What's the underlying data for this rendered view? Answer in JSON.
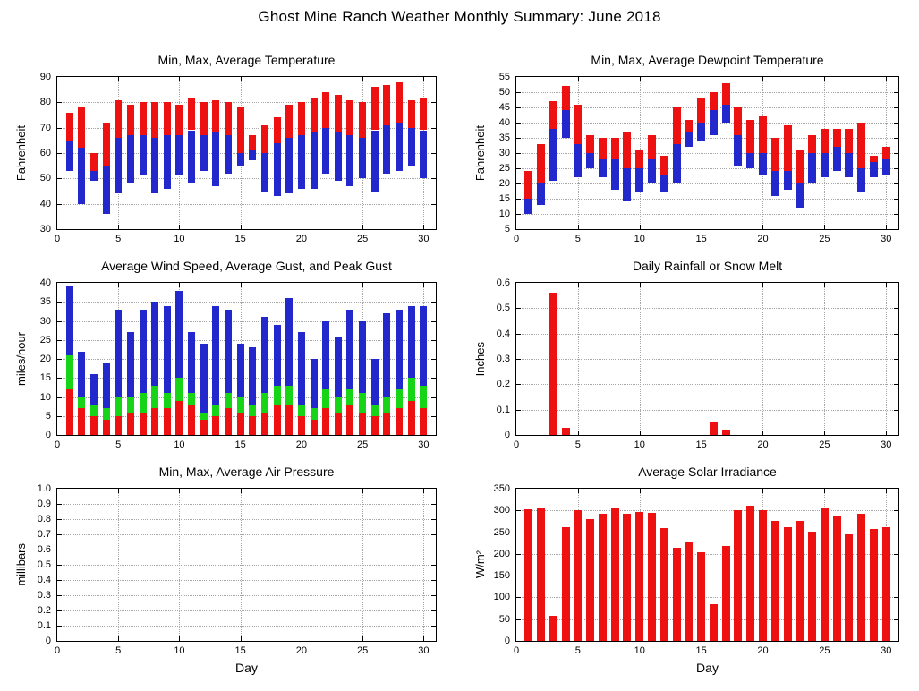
{
  "title": "Ghost Mine Ranch Weather Monthly Summary: June 2018",
  "colors": {
    "red": "#ee1111",
    "green": "#17d417",
    "blue": "#2328cc",
    "grid": "#a6a6a6"
  },
  "chart_data": [
    {
      "name": "temperature",
      "type": "range",
      "title": "Min, Max, Average Temperature",
      "ylabel": "Fahrenheit",
      "xlabel": "",
      "ymin": 30,
      "ymax": 90,
      "yticks": [
        30,
        40,
        50,
        60,
        70,
        80,
        90
      ],
      "ytick_labels": [
        "30",
        "40",
        "50",
        "60",
        "70",
        "80",
        "90"
      ],
      "xmin": 0,
      "xmax": 31,
      "xticks": [
        0,
        5,
        10,
        15,
        20,
        25,
        30
      ],
      "series": {
        "min": [
          53,
          40,
          49,
          36,
          44,
          48,
          51,
          44,
          46,
          51,
          48,
          53,
          47,
          52,
          55,
          57,
          45,
          43,
          44,
          46,
          46,
          52,
          49,
          47,
          50,
          45,
          52,
          53,
          55,
          50
        ],
        "avg": [
          65,
          62,
          53,
          55,
          66,
          67,
          67,
          66,
          67,
          67,
          69,
          67,
          68,
          67,
          60,
          61,
          60,
          64,
          66,
          67,
          68,
          70,
          68,
          67,
          66,
          69,
          71,
          72,
          70,
          69
        ],
        "max": [
          76,
          78,
          60,
          72,
          81,
          79,
          80,
          80,
          80,
          79,
          82,
          80,
          81,
          80,
          78,
          67,
          71,
          74,
          79,
          80,
          82,
          84,
          83,
          81,
          80,
          86,
          87,
          88,
          81,
          82
        ]
      }
    },
    {
      "name": "dewpoint",
      "type": "range",
      "title": "Min, Max, Average Dewpoint Temperature",
      "ylabel": "Fahrenheit",
      "xlabel": "",
      "ymin": 5,
      "ymax": 55,
      "yticks": [
        5,
        10,
        15,
        20,
        25,
        30,
        35,
        40,
        45,
        50,
        55
      ],
      "ytick_labels": [
        "5",
        "10",
        "15",
        "20",
        "25",
        "30",
        "35",
        "40",
        "45",
        "50",
        "55"
      ],
      "xmin": 0,
      "xmax": 31,
      "xticks": [
        0,
        5,
        10,
        15,
        20,
        25,
        30
      ],
      "series": {
        "min": [
          10,
          13,
          21,
          35,
          22,
          25,
          22,
          18,
          14,
          17,
          20,
          17,
          20,
          32,
          34,
          36,
          40,
          26,
          25,
          23,
          16,
          18,
          12,
          20,
          22,
          24,
          22,
          17,
          22,
          23
        ],
        "avg": [
          15,
          20,
          38,
          44,
          33,
          30,
          28,
          28,
          25,
          25,
          28,
          23,
          33,
          37,
          40,
          44,
          46,
          36,
          30,
          30,
          24,
          24,
          20,
          30,
          30,
          32,
          30,
          25,
          27,
          28
        ],
        "max": [
          24,
          33,
          47,
          52,
          46,
          36,
          35,
          35,
          37,
          31,
          36,
          29,
          45,
          41,
          48,
          50,
          53,
          45,
          41,
          42,
          35,
          39,
          31,
          36,
          38,
          38,
          38,
          40,
          29,
          32
        ]
      }
    },
    {
      "name": "wind",
      "type": "overlay",
      "title": "Average Wind Speed, Average Gust, and Peak Gust",
      "ylabel": "miles/hour",
      "xlabel": "",
      "ymin": 0,
      "ymax": 40,
      "yticks": [
        0,
        5,
        10,
        15,
        20,
        25,
        30,
        35,
        40
      ],
      "ytick_labels": [
        "0",
        "5",
        "10",
        "15",
        "20",
        "25",
        "30",
        "35",
        "40"
      ],
      "xmin": 0,
      "xmax": 31,
      "xticks": [
        0,
        5,
        10,
        15,
        20,
        25,
        30
      ],
      "series": {
        "avg_speed": [
          12,
          7,
          5,
          4,
          5,
          6,
          6,
          7,
          7,
          9,
          8,
          4,
          5,
          7,
          6,
          5,
          6,
          8,
          8,
          5,
          4,
          7,
          6,
          8,
          6,
          5,
          6,
          7,
          9,
          7
        ],
        "avg_gust": [
          21,
          10,
          8,
          7,
          10,
          10,
          11,
          13,
          11,
          15,
          11,
          6,
          8,
          11,
          10,
          8,
          11,
          13,
          13,
          8,
          7,
          12,
          10,
          12,
          11,
          8,
          10,
          12,
          15,
          13
        ],
        "peak_gust": [
          39,
          22,
          16,
          19,
          33,
          27,
          33,
          35,
          34,
          38,
          27,
          24,
          34,
          33,
          24,
          23,
          31,
          29,
          36,
          27,
          20,
          30,
          26,
          33,
          30,
          20,
          32,
          33,
          34,
          34
        ]
      }
    },
    {
      "name": "rainfall",
      "type": "bar",
      "title": "Daily Rainfall or Snow Melt",
      "ylabel": "Inches",
      "xlabel": "",
      "ymin": 0,
      "ymax": 0.6,
      "yticks": [
        0,
        0.1,
        0.2,
        0.3,
        0.4,
        0.5,
        0.6
      ],
      "ytick_labels": [
        "0",
        "0.1",
        "0.2",
        "0.3",
        "0.4",
        "0.5",
        "0.6"
      ],
      "xmin": 0,
      "xmax": 31,
      "xticks": [
        0,
        5,
        10,
        15,
        20,
        25,
        30
      ],
      "values": [
        0,
        0,
        0.56,
        0.03,
        0,
        0,
        0,
        0,
        0,
        0,
        0,
        0,
        0,
        0,
        0,
        0.05,
        0.02,
        0,
        0,
        0,
        0,
        0,
        0,
        0,
        0,
        0,
        0,
        0,
        0,
        0
      ]
    },
    {
      "name": "pressure",
      "type": "empty",
      "title": "Min, Max, Average Air Pressure",
      "ylabel": "millibars",
      "xlabel": "Day",
      "ymin": 0,
      "ymax": 1,
      "yticks": [
        0,
        0.1,
        0.2,
        0.3,
        0.4,
        0.5,
        0.6,
        0.7,
        0.8,
        0.9,
        1
      ],
      "ytick_labels": [
        "0",
        "0.1",
        "0.2",
        "0.3",
        "0.4",
        "0.5",
        "0.6",
        "0.7",
        "0.8",
        "0.9",
        "1.0"
      ],
      "xmin": 0,
      "xmax": 31,
      "xticks": [
        0,
        5,
        10,
        15,
        20,
        25,
        30
      ],
      "values": []
    },
    {
      "name": "solar",
      "type": "bar",
      "title": "Average Solar Irradiance",
      "ylabel": "W/m²",
      "xlabel": "Day",
      "ymin": 0,
      "ymax": 350,
      "yticks": [
        0,
        50,
        100,
        150,
        200,
        250,
        300,
        350
      ],
      "ytick_labels": [
        "0",
        "50",
        "100",
        "150",
        "200",
        "250",
        "300",
        "350"
      ],
      "xmin": 0,
      "xmax": 31,
      "xticks": [
        0,
        5,
        10,
        15,
        20,
        25,
        30
      ],
      "values": [
        303,
        307,
        57,
        262,
        300,
        280,
        292,
        307,
        292,
        297,
        295,
        260,
        215,
        228,
        203,
        85,
        218,
        300,
        310,
        300,
        275,
        262,
        275,
        252,
        305,
        288,
        245,
        292,
        258,
        262
      ]
    }
  ]
}
